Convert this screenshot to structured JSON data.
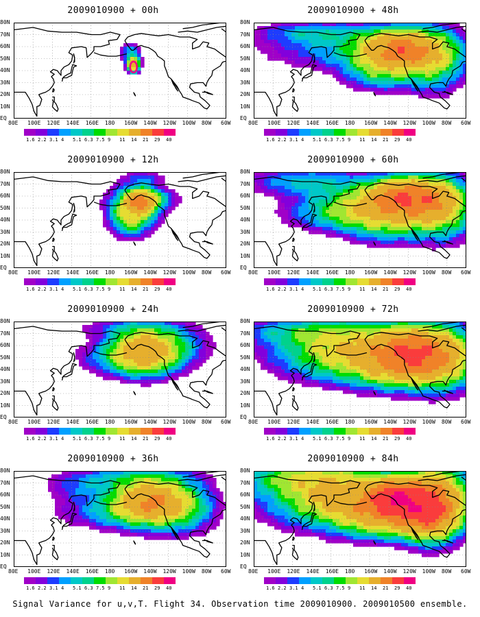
{
  "panels": [
    {
      "title": "2009010900 + 00h",
      "intensity": 0
    },
    {
      "title": "2009010900 + 12h",
      "intensity": 1
    },
    {
      "title": "2009010900 + 24h",
      "intensity": 2
    },
    {
      "title": "2009010900 + 36h",
      "intensity": 3
    },
    {
      "title": "2009010900 + 48h",
      "intensity": 4
    },
    {
      "title": "2009010900 + 60h",
      "intensity": 5
    },
    {
      "title": "2009010900 + 72h",
      "intensity": 6
    },
    {
      "title": "2009010900 + 84h",
      "intensity": 7
    }
  ],
  "lat_labels": [
    "80N",
    "70N",
    "60N",
    "50N",
    "40N",
    "30N",
    "20N",
    "10N",
    "EQ"
  ],
  "lon_labels": [
    "80E",
    "100E",
    "120E",
    "140E",
    "160E",
    "180",
    "160W",
    "140W",
    "120W",
    "100W",
    "80W",
    "60W"
  ],
  "colorbar": {
    "labels": [
      "1.6",
      "2.2",
      "3.1",
      "4",
      "5.1",
      "6.3",
      "7.5",
      "9",
      "11",
      "14",
      "21",
      "29",
      "40"
    ],
    "colors": [
      "#a000c8",
      "#8200dc",
      "#1e3cff",
      "#00a0ff",
      "#00c8c8",
      "#00d28c",
      "#00dc00",
      "#a0e632",
      "#e6dc32",
      "#e6af2d",
      "#f08228",
      "#fa3c3c",
      "#f00082"
    ]
  },
  "footer": "Signal Variance for u,v,T. Flight 34. Observation time 2009010900. 2009010500 ensemble."
}
